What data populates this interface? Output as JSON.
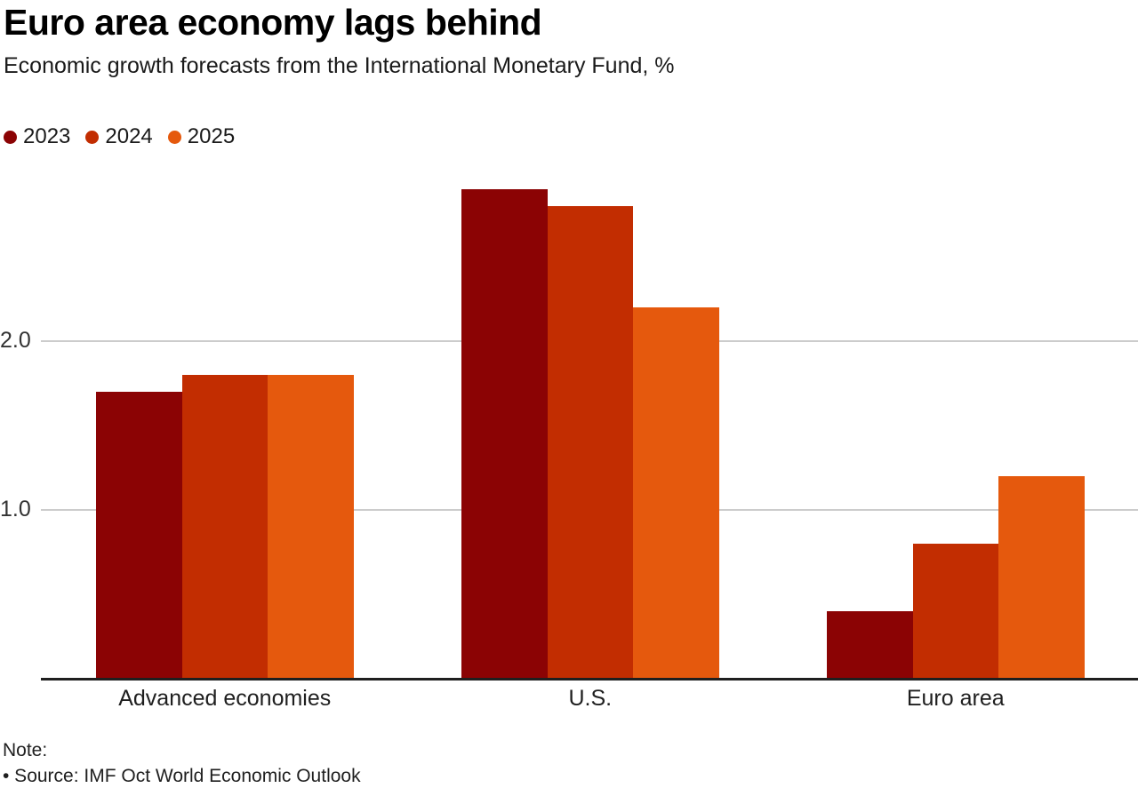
{
  "header": {
    "title": "Euro area economy lags behind",
    "subtitle": "Economic growth forecasts from the International Monetary Fund, %"
  },
  "legend": {
    "items": [
      {
        "label": "2023",
        "color": "#8B0304"
      },
      {
        "label": "2024",
        "color": "#C22D01"
      },
      {
        "label": "2025",
        "color": "#E5590D"
      }
    ]
  },
  "chart_data": {
    "type": "bar",
    "title": "Euro area economy lags behind",
    "subtitle": "Economic growth forecasts from the International Monetary Fund, %",
    "categories": [
      "Advanced economies",
      "U.S.",
      "Euro area"
    ],
    "series": [
      {
        "name": "2023",
        "color": "#8B0304",
        "values": [
          1.7,
          2.9,
          0.4
        ]
      },
      {
        "name": "2024",
        "color": "#C22D01",
        "values": [
          1.8,
          2.8,
          0.8
        ]
      },
      {
        "name": "2025",
        "color": "#E5590D",
        "values": [
          1.8,
          2.2,
          1.2
        ]
      }
    ],
    "xlabel": "",
    "ylabel": "",
    "unit": "%",
    "yticks": [
      1.0,
      2.0
    ],
    "ytick_labels": [
      "1.0",
      "2.0"
    ],
    "ylim": [
      0,
      3.0
    ],
    "grid": true,
    "legend_position": "top-left"
  },
  "footer": {
    "note_label": "Note:",
    "source_line": "• Source: IMF Oct World Economic Outlook"
  },
  "colors": {
    "grid": "#cccccc",
    "axis": "#1f1f1f",
    "tick_text": "#333333",
    "label_text": "#1f1f1f"
  }
}
